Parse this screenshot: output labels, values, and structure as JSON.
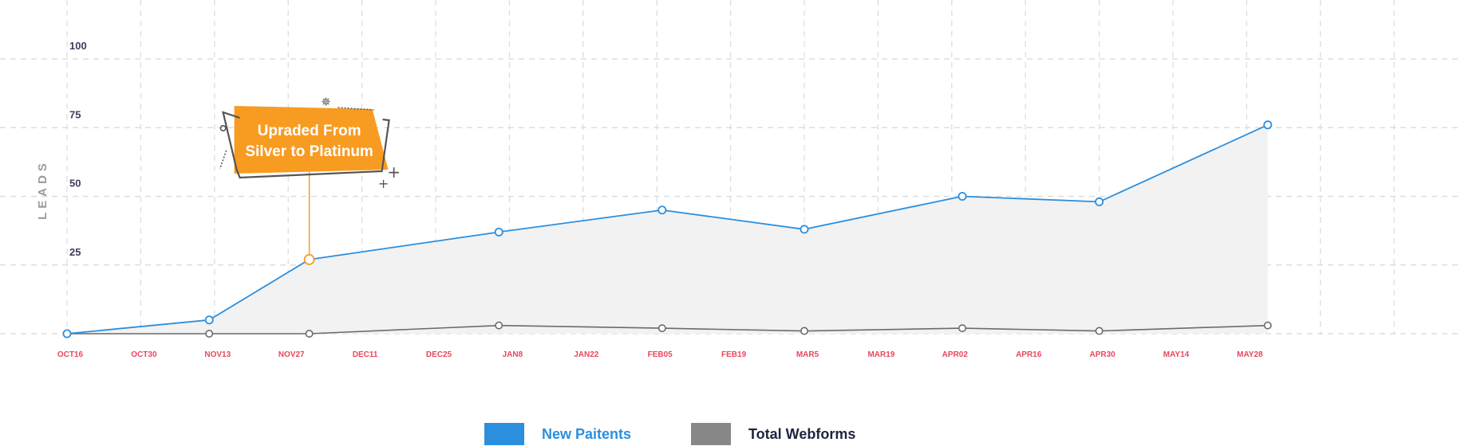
{
  "chart_data": {
    "type": "area",
    "ylabel": "LEADS",
    "xlabel": "",
    "ylim": [
      0,
      100
    ],
    "yticks": [
      "100",
      "75",
      "50",
      "25"
    ],
    "xticks": [
      "OCT16",
      "OCT30",
      "NOV13",
      "NOV27",
      "DEC11",
      "DEC25",
      "JAN8",
      "JAN22",
      "FEB05",
      "FEB19",
      "MAR5",
      "MAR19",
      "APR02",
      "APR16",
      "APR30",
      "MAY14",
      "MAY28"
    ],
    "grid": true,
    "legend_position": "bottom-center",
    "series": [
      {
        "name": "New Paitents",
        "color": "#2b8fde",
        "points": [
          {
            "x": "Oct 16",
            "y": 0
          },
          {
            "x": "Nov 12",
            "y": 5
          },
          {
            "x": "Dec 1",
            "y": 27
          },
          {
            "x": "Jan 6",
            "y": 37
          },
          {
            "x": "Feb 6",
            "y": 45
          },
          {
            "x": "Mar 5",
            "y": 38
          },
          {
            "x": "Apr 4",
            "y": 50
          },
          {
            "x": "Apr 30",
            "y": 48
          },
          {
            "x": "Jun 1",
            "y": 76
          }
        ]
      },
      {
        "name": "Total Webforms",
        "color": "#878787",
        "points": [
          {
            "x": "Oct 16",
            "y": 0
          },
          {
            "x": "Nov 12",
            "y": 0
          },
          {
            "x": "Dec 1",
            "y": 0
          },
          {
            "x": "Jan 6",
            "y": 3
          },
          {
            "x": "Feb 6",
            "y": 2
          },
          {
            "x": "Mar 5",
            "y": 1
          },
          {
            "x": "Apr 4",
            "y": 2
          },
          {
            "x": "Apr 30",
            "y": 1
          },
          {
            "x": "Jun 1",
            "y": 3
          }
        ]
      }
    ],
    "annotation": {
      "text_lines": [
        "Upraded From",
        "Silver to Platinum"
      ],
      "x": "Dec 1",
      "y": 27,
      "color": "#f89b21"
    }
  }
}
